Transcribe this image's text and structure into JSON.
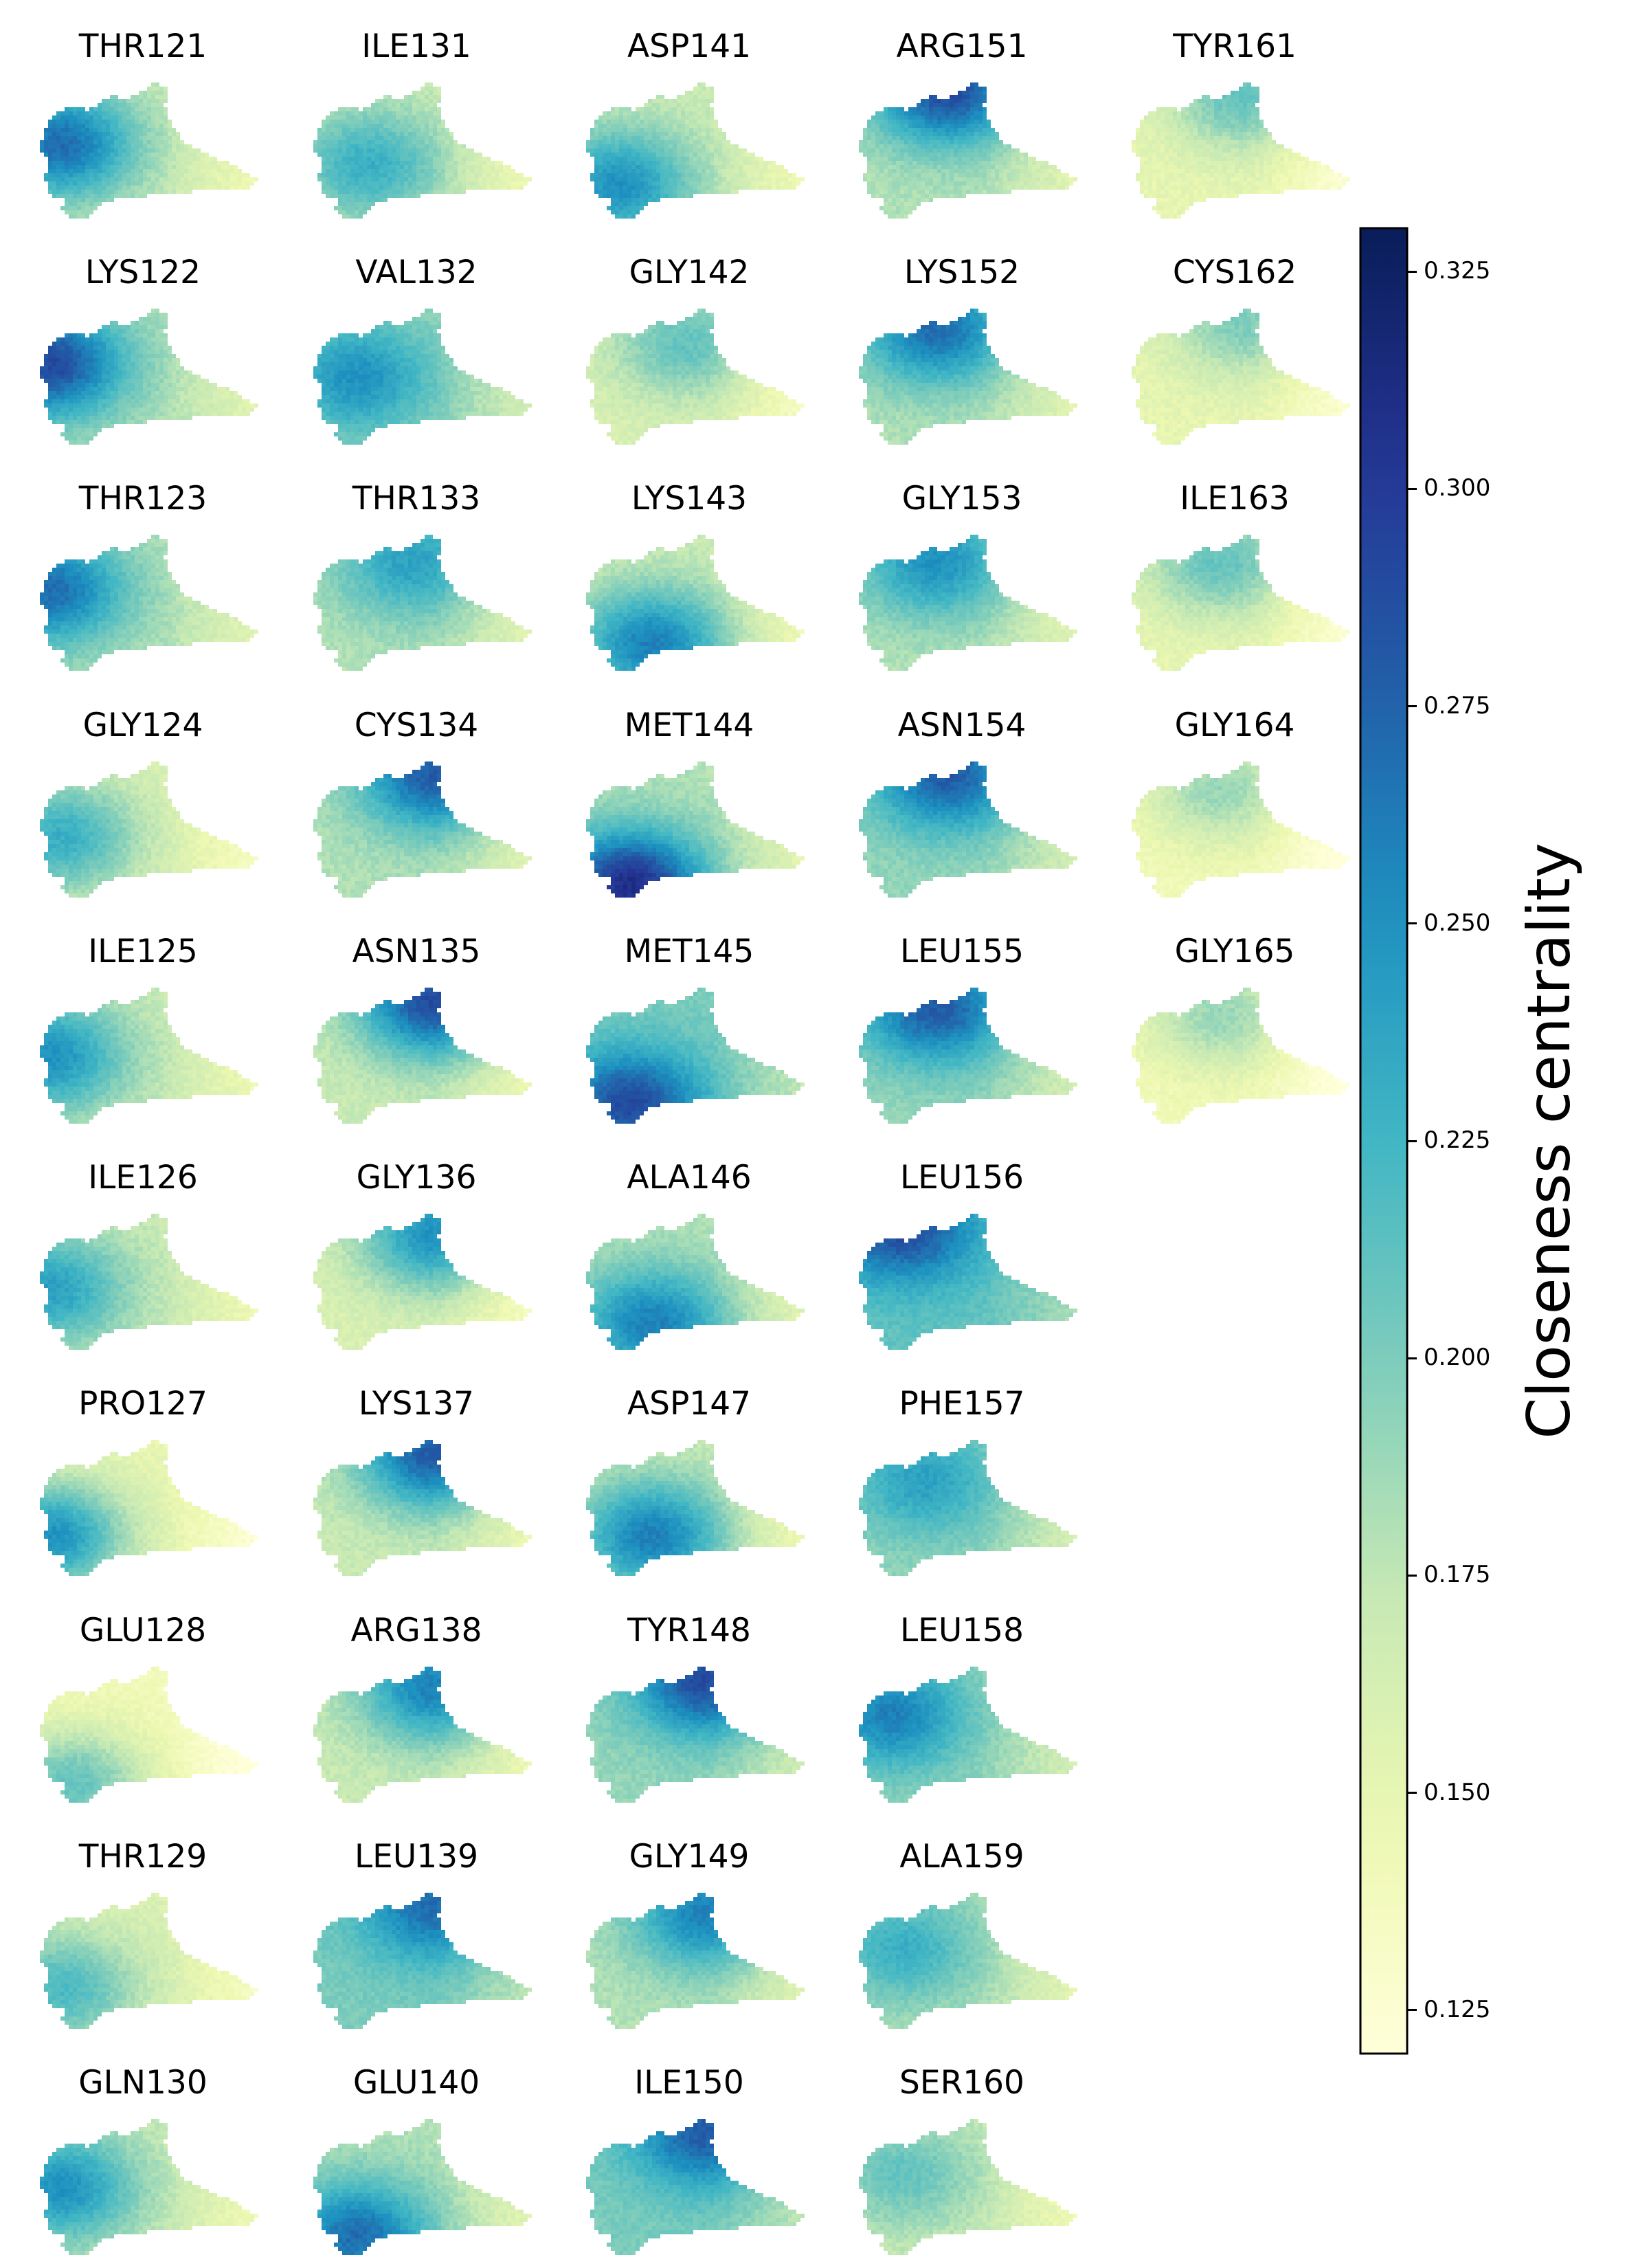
{
  "chart_data": {
    "type": "heatmap",
    "colormap": "YlGnBu",
    "colorbar": {
      "label": "Closeness centrality",
      "range": [
        0.12,
        0.33
      ],
      "ticks": [
        "0.125",
        "0.150",
        "0.175",
        "0.200",
        "0.225",
        "0.250",
        "0.275",
        "0.300",
        "0.325"
      ],
      "tick_values": [
        0.125,
        0.15,
        0.175,
        0.2,
        0.225,
        0.25,
        0.275,
        0.3,
        0.325
      ],
      "placement": "right"
    },
    "panels": [
      {
        "label": "THR121",
        "col": 0,
        "row": 0,
        "hotspot": [
          0.1,
          0.45
        ],
        "peak": 0.27,
        "base": 0.17
      },
      {
        "label": "LYS122",
        "col": 0,
        "row": 1,
        "hotspot": [
          0.05,
          0.4
        ],
        "peak": 0.29,
        "base": 0.18
      },
      {
        "label": "THR123",
        "col": 0,
        "row": 2,
        "hotspot": [
          0.05,
          0.4
        ],
        "peak": 0.27,
        "base": 0.18
      },
      {
        "label": "GLY124",
        "col": 0,
        "row": 3,
        "hotspot": [
          0.1,
          0.55
        ],
        "peak": 0.23,
        "base": 0.16
      },
      {
        "label": "ILE125",
        "col": 0,
        "row": 4,
        "hotspot": [
          0.05,
          0.5
        ],
        "peak": 0.25,
        "base": 0.17
      },
      {
        "label": "ILE126",
        "col": 0,
        "row": 5,
        "hotspot": [
          0.05,
          0.55
        ],
        "peak": 0.24,
        "base": 0.17
      },
      {
        "label": "PRO127",
        "col": 0,
        "row": 6,
        "hotspot": [
          0.05,
          0.7
        ],
        "peak": 0.25,
        "base": 0.15
      },
      {
        "label": "GLU128",
        "col": 0,
        "row": 7,
        "hotspot": [
          0.15,
          0.85
        ],
        "peak": 0.21,
        "base": 0.14
      },
      {
        "label": "THR129",
        "col": 0,
        "row": 8,
        "hotspot": [
          0.1,
          0.7
        ],
        "peak": 0.22,
        "base": 0.16
      },
      {
        "label": "GLN130",
        "col": 0,
        "row": 9,
        "hotspot": [
          0.1,
          0.5
        ],
        "peak": 0.25,
        "base": 0.17
      },
      {
        "label": "ILE131",
        "col": 1,
        "row": 0,
        "hotspot": [
          0.25,
          0.6
        ],
        "peak": 0.23,
        "base": 0.17
      },
      {
        "label": "VAL132",
        "col": 1,
        "row": 1,
        "hotspot": [
          0.2,
          0.5
        ],
        "peak": 0.25,
        "base": 0.19
      },
      {
        "label": "THR133",
        "col": 1,
        "row": 2,
        "hotspot": [
          0.45,
          0.2
        ],
        "peak": 0.24,
        "base": 0.18
      },
      {
        "label": "CYS134",
        "col": 1,
        "row": 3,
        "hotspot": [
          0.55,
          0.1
        ],
        "peak": 0.28,
        "base": 0.18
      },
      {
        "label": "ASN135",
        "col": 1,
        "row": 4,
        "hotspot": [
          0.55,
          0.1
        ],
        "peak": 0.29,
        "base": 0.17
      },
      {
        "label": "GLY136",
        "col": 1,
        "row": 5,
        "hotspot": [
          0.55,
          0.15
        ],
        "peak": 0.25,
        "base": 0.16
      },
      {
        "label": "LYS137",
        "col": 1,
        "row": 6,
        "hotspot": [
          0.55,
          0.1
        ],
        "peak": 0.28,
        "base": 0.17
      },
      {
        "label": "ARG138",
        "col": 1,
        "row": 7,
        "hotspot": [
          0.55,
          0.15
        ],
        "peak": 0.26,
        "base": 0.17
      },
      {
        "label": "LEU139",
        "col": 1,
        "row": 8,
        "hotspot": [
          0.55,
          0.1
        ],
        "peak": 0.27,
        "base": 0.2
      },
      {
        "label": "GLU140",
        "col": 1,
        "row": 9,
        "hotspot": [
          0.2,
          0.85
        ],
        "peak": 0.27,
        "base": 0.18
      },
      {
        "label": "ASP141",
        "col": 2,
        "row": 0,
        "hotspot": [
          0.15,
          0.75
        ],
        "peak": 0.25,
        "base": 0.17
      },
      {
        "label": "GLY142",
        "col": 2,
        "row": 1,
        "hotspot": [
          0.45,
          0.25
        ],
        "peak": 0.21,
        "base": 0.16
      },
      {
        "label": "LYS143",
        "col": 2,
        "row": 2,
        "hotspot": [
          0.3,
          0.8
        ],
        "peak": 0.26,
        "base": 0.17
      },
      {
        "label": "MET144",
        "col": 2,
        "row": 3,
        "hotspot": [
          0.2,
          0.9
        ],
        "peak": 0.31,
        "base": 0.18
      },
      {
        "label": "MET145",
        "col": 2,
        "row": 4,
        "hotspot": [
          0.2,
          0.85
        ],
        "peak": 0.29,
        "base": 0.2
      },
      {
        "label": "ALA146",
        "col": 2,
        "row": 5,
        "hotspot": [
          0.3,
          0.8
        ],
        "peak": 0.26,
        "base": 0.18
      },
      {
        "label": "ASP147",
        "col": 2,
        "row": 6,
        "hotspot": [
          0.3,
          0.7
        ],
        "peak": 0.26,
        "base": 0.17
      },
      {
        "label": "TYR148",
        "col": 2,
        "row": 7,
        "hotspot": [
          0.55,
          0.1
        ],
        "peak": 0.29,
        "base": 0.19
      },
      {
        "label": "GLY149",
        "col": 2,
        "row": 8,
        "hotspot": [
          0.55,
          0.15
        ],
        "peak": 0.26,
        "base": 0.18
      },
      {
        "label": "ILE150",
        "col": 2,
        "row": 9,
        "hotspot": [
          0.55,
          0.1
        ],
        "peak": 0.28,
        "base": 0.2
      },
      {
        "label": "ARG151",
        "col": 3,
        "row": 0,
        "hotspot": [
          0.4,
          0.05
        ],
        "peak": 0.29,
        "base": 0.18
      },
      {
        "label": "LYS152",
        "col": 3,
        "row": 1,
        "hotspot": [
          0.35,
          0.15
        ],
        "peak": 0.27,
        "base": 0.18
      },
      {
        "label": "GLY153",
        "col": 3,
        "row": 2,
        "hotspot": [
          0.35,
          0.2
        ],
        "peak": 0.25,
        "base": 0.18
      },
      {
        "label": "ASN154",
        "col": 3,
        "row": 3,
        "hotspot": [
          0.4,
          0.1
        ],
        "peak": 0.28,
        "base": 0.19
      },
      {
        "label": "LEU155",
        "col": 3,
        "row": 4,
        "hotspot": [
          0.35,
          0.15
        ],
        "peak": 0.28,
        "base": 0.19
      },
      {
        "label": "LEU156",
        "col": 3,
        "row": 5,
        "hotspot": [
          0.2,
          0.1
        ],
        "peak": 0.29,
        "base": 0.21
      },
      {
        "label": "PHE157",
        "col": 3,
        "row": 6,
        "hotspot": [
          0.3,
          0.3
        ],
        "peak": 0.24,
        "base": 0.19
      },
      {
        "label": "LEU158",
        "col": 3,
        "row": 7,
        "hotspot": [
          0.15,
          0.35
        ],
        "peak": 0.26,
        "base": 0.19
      },
      {
        "label": "ALA159",
        "col": 3,
        "row": 8,
        "hotspot": [
          0.2,
          0.4
        ],
        "peak": 0.23,
        "base": 0.18
      },
      {
        "label": "SER160",
        "col": 3,
        "row": 9,
        "hotspot": [
          0.2,
          0.4
        ],
        "peak": 0.21,
        "base": 0.17
      },
      {
        "label": "TYR161",
        "col": 4,
        "row": 0,
        "hotspot": [
          0.5,
          0.1
        ],
        "peak": 0.21,
        "base": 0.15
      },
      {
        "label": "CYS162",
        "col": 4,
        "row": 1,
        "hotspot": [
          0.5,
          0.1
        ],
        "peak": 0.2,
        "base": 0.15
      },
      {
        "label": "ILE163",
        "col": 4,
        "row": 2,
        "hotspot": [
          0.4,
          0.2
        ],
        "peak": 0.21,
        "base": 0.15
      },
      {
        "label": "GLY164",
        "col": 4,
        "row": 3,
        "hotspot": [
          0.4,
          0.2
        ],
        "peak": 0.19,
        "base": 0.14
      },
      {
        "label": "GLY165",
        "col": 4,
        "row": 4,
        "hotspot": [
          0.4,
          0.2
        ],
        "peak": 0.19,
        "base": 0.14
      }
    ]
  }
}
